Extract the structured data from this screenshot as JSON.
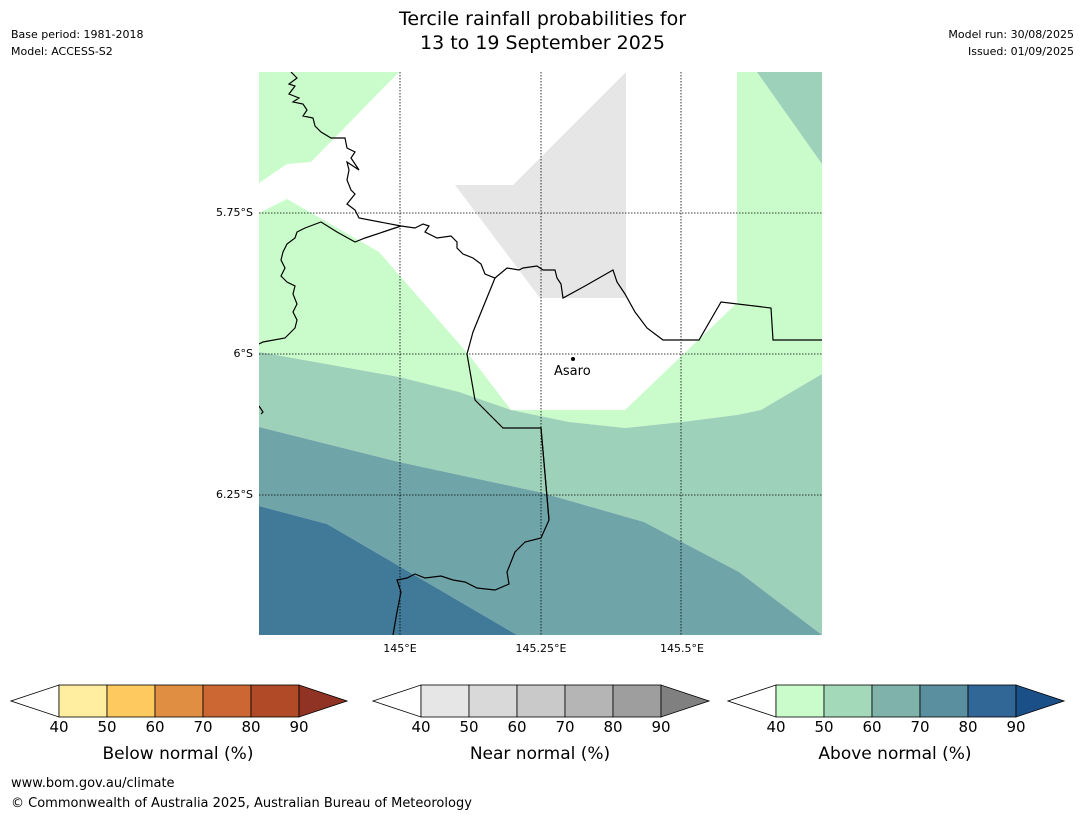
{
  "header": {
    "title_line1": "Tercile rainfall probabilities for",
    "title_line2": "13 to 19 September 2025",
    "base_period": "Base period: 1981-2018",
    "model": "Model: ACCESS-S2",
    "model_run": "Model run: 30/08/2025",
    "issued": "Issued: 01/09/2025"
  },
  "map": {
    "lat_labels": [
      "5.75°S",
      "6°S",
      "6.25°S"
    ],
    "lon_labels": [
      "145°E",
      "145.25°E",
      "145.5°E"
    ],
    "place_label": "Asaro",
    "colors": {
      "above_40": "#c9fcca",
      "above_50": "#9ed1b9",
      "above_60": "#6fa5a9",
      "above_70": "#417a98",
      "near_40": "#e6e6e6",
      "border": "#000000"
    }
  },
  "colorbars": [
    {
      "name": "below-normal",
      "label": "Below normal (%)",
      "ticks": [
        "40",
        "50",
        "60",
        "70",
        "80",
        "90"
      ],
      "colors": [
        "#ffeda0",
        "#fec95f",
        "#e08f42",
        "#cc6632",
        "#b04a27"
      ],
      "extend_color": "#903224"
    },
    {
      "name": "near-normal",
      "label": "Near normal (%)",
      "ticks": [
        "40",
        "50",
        "60",
        "70",
        "80",
        "90"
      ],
      "colors": [
        "#e6e6e6",
        "#d9d9d9",
        "#c9c9c9",
        "#b5b5b5",
        "#9e9e9e"
      ],
      "extend_color": "#808080"
    },
    {
      "name": "above-normal",
      "label": "Above normal (%)",
      "ticks": [
        "40",
        "50",
        "60",
        "70",
        "80",
        "90"
      ],
      "colors": [
        "#c9fcca",
        "#a3d8b9",
        "#7fb2ab",
        "#5a8fa0",
        "#306796"
      ],
      "extend_color": "#1b4f87"
    }
  ],
  "footer": {
    "url": "www.bom.gov.au/climate",
    "copyright": "© Commonwealth of Australia 2025, Australian Bureau of Meteorology"
  }
}
